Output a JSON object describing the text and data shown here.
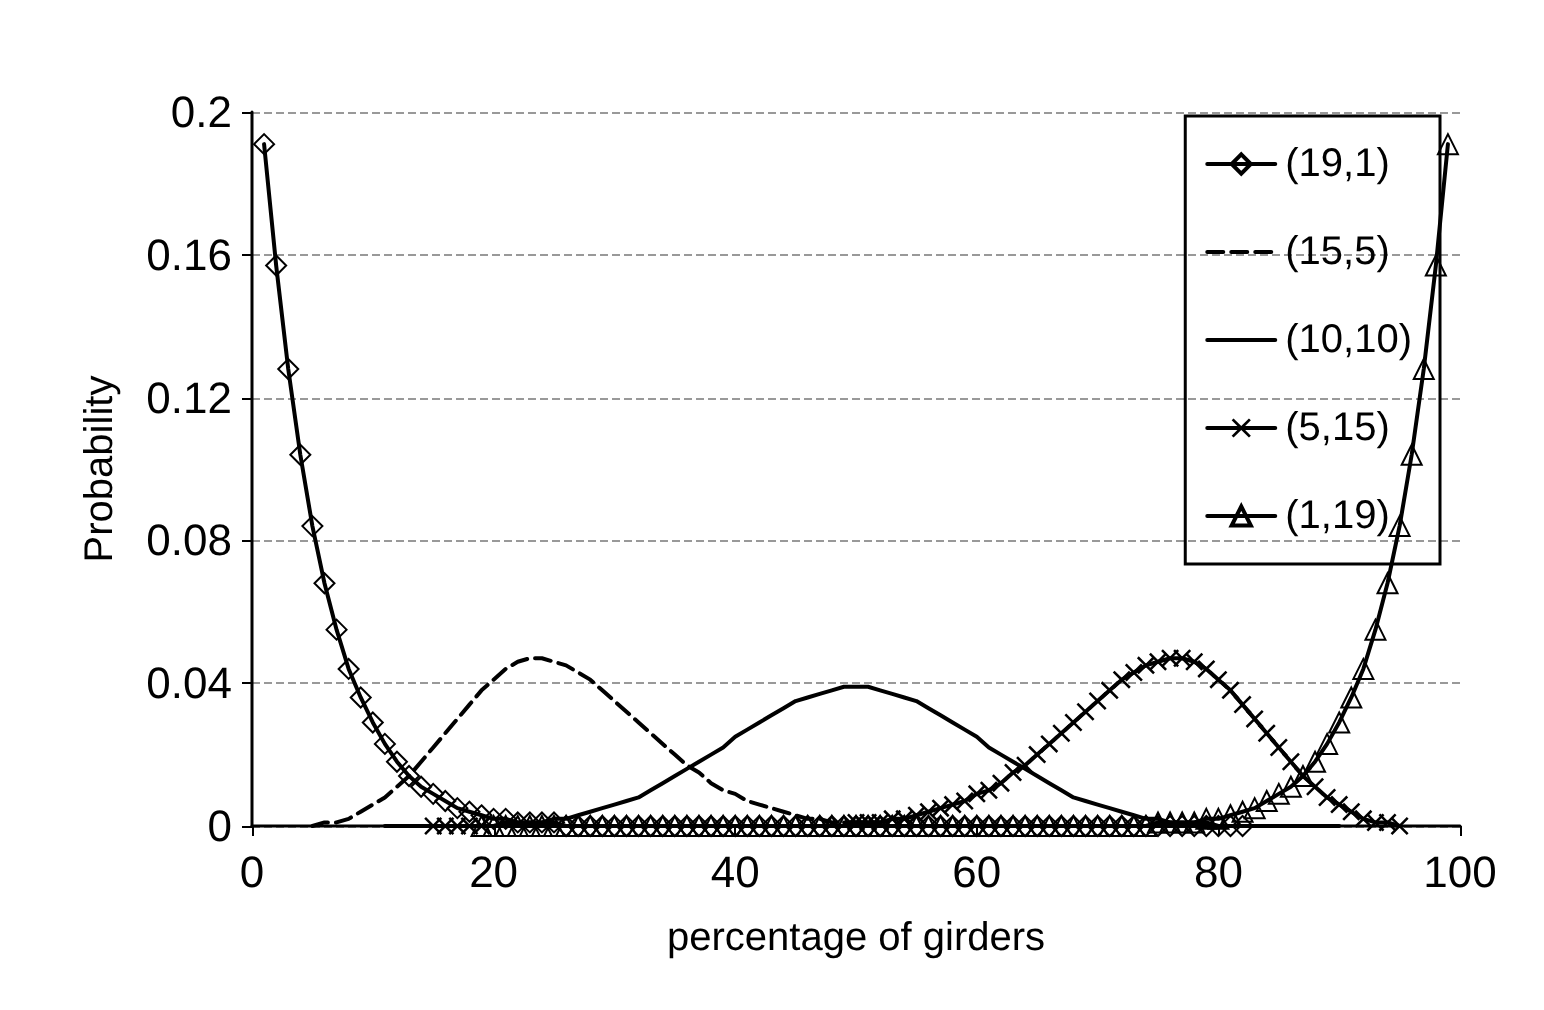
{
  "chart_data": {
    "type": "line",
    "xlabel": "percentage of girders",
    "ylabel": "Probability",
    "xlim": [
      0,
      100
    ],
    "xticks": [
      0,
      20,
      40,
      60,
      80,
      100
    ],
    "ylim": [
      0,
      0.2
    ],
    "yticks": [
      0,
      0.04,
      0.08,
      0.12,
      0.16,
      0.2
    ],
    "grid": "y",
    "legend": "top right",
    "series": [
      {
        "name": "(19,1)",
        "color": "#000000",
        "marker": "diamond",
        "line_style": "solid",
        "x": [
          1,
          2,
          3,
          4,
          5,
          6,
          7,
          8,
          9,
          10,
          11,
          12,
          13,
          14,
          15,
          16,
          17,
          18,
          19,
          20,
          21,
          22,
          23,
          24,
          25,
          26,
          27,
          28,
          29,
          30,
          31,
          32,
          33,
          34,
          35,
          36,
          37,
          38,
          39,
          40,
          41,
          42,
          43,
          44,
          45,
          46,
          47,
          48,
          49,
          50,
          51,
          52,
          53,
          54,
          55,
          56,
          57,
          58,
          59,
          60,
          61,
          62,
          63,
          64,
          65,
          66,
          67,
          68,
          69,
          70,
          71,
          72,
          73,
          74,
          75,
          76,
          77,
          78,
          79,
          80,
          81,
          82
        ],
        "values": [
          0.191,
          0.157,
          0.128,
          0.104,
          0.084,
          0.068,
          0.055,
          0.044,
          0.036,
          0.029,
          0.023,
          0.018,
          0.014,
          0.011,
          0.009,
          0.007,
          0.005,
          0.004,
          0.003,
          0.002,
          0.002,
          0.001,
          0.001,
          0.001,
          0.001,
          0,
          0,
          0,
          0,
          0,
          0,
          0,
          0,
          0,
          0,
          0,
          0,
          0,
          0,
          0,
          0,
          0,
          0,
          0,
          0,
          0,
          0,
          0,
          0,
          0,
          0,
          0,
          0,
          0,
          0,
          0,
          0,
          0,
          0,
          0,
          0,
          0,
          0,
          0,
          0,
          0,
          0,
          0,
          0,
          0,
          0,
          0,
          0,
          0,
          0,
          0,
          0,
          0,
          0,
          0,
          0,
          0
        ]
      },
      {
        "name": "(15,5)",
        "color": "#000000",
        "marker": "none",
        "line_style": "dashed",
        "x": [
          5,
          6,
          7,
          8,
          9,
          10,
          11,
          12,
          13,
          14,
          15,
          16,
          17,
          18,
          19,
          20,
          21,
          22,
          23,
          24,
          25,
          26,
          27,
          28,
          29,
          30,
          31,
          32,
          33,
          34,
          35,
          36,
          37,
          38,
          39,
          40,
          41,
          42,
          43,
          44,
          45,
          46,
          47,
          48,
          49,
          50,
          51,
          52,
          53,
          54,
          55,
          56,
          57,
          58
        ],
        "values": [
          0,
          0.001,
          0.001,
          0.002,
          0.004,
          0.006,
          0.008,
          0.011,
          0.014,
          0.018,
          0.022,
          0.026,
          0.03,
          0.034,
          0.038,
          0.041,
          0.044,
          0.046,
          0.047,
          0.047,
          0.046,
          0.045,
          0.043,
          0.041,
          0.038,
          0.035,
          0.032,
          0.029,
          0.026,
          0.023,
          0.02,
          0.017,
          0.015,
          0.012,
          0.01,
          0.009,
          0.007,
          0.006,
          0.005,
          0.004,
          0.003,
          0.002,
          0.002,
          0.001,
          0.001,
          0.001,
          0,
          0,
          0,
          0,
          0,
          0,
          0,
          0
        ]
      },
      {
        "name": "(10,10)",
        "color": "#000000",
        "marker": "none",
        "line_style": "solid",
        "x": [
          11,
          12,
          13,
          14,
          15,
          16,
          17,
          18,
          19,
          20,
          21,
          22,
          23,
          24,
          25,
          26,
          27,
          28,
          29,
          30,
          31,
          32,
          33,
          34,
          35,
          36,
          37,
          38,
          39,
          40,
          41,
          42,
          43,
          44,
          45,
          46,
          47,
          48,
          49,
          50,
          51,
          52,
          53,
          54,
          55,
          56,
          57,
          58,
          59,
          60,
          61,
          62,
          63,
          64,
          65,
          66,
          67,
          68,
          69,
          70,
          71,
          72,
          73,
          74,
          75,
          76,
          77,
          78,
          79,
          80,
          81,
          82,
          83,
          84,
          85,
          86,
          87,
          88,
          89,
          90
        ],
        "values": [
          0,
          0,
          0,
          0,
          0,
          0,
          0,
          0,
          0,
          0,
          0.001,
          0.001,
          0.001,
          0.001,
          0.002,
          0.002,
          0.003,
          0.004,
          0.005,
          0.006,
          0.007,
          0.008,
          0.01,
          0.012,
          0.014,
          0.016,
          0.018,
          0.02,
          0.022,
          0.025,
          0.027,
          0.029,
          0.031,
          0.033,
          0.035,
          0.036,
          0.037,
          0.038,
          0.039,
          0.039,
          0.039,
          0.038,
          0.037,
          0.036,
          0.035,
          0.033,
          0.031,
          0.029,
          0.027,
          0.025,
          0.022,
          0.02,
          0.018,
          0.016,
          0.014,
          0.012,
          0.01,
          0.008,
          0.007,
          0.006,
          0.005,
          0.004,
          0.003,
          0.002,
          0.002,
          0.001,
          0.001,
          0.001,
          0.001,
          0,
          0,
          0,
          0,
          0,
          0,
          0,
          0,
          0,
          0,
          0
        ]
      },
      {
        "name": "(5,15)",
        "color": "#000000",
        "marker": "cross",
        "line_style": "solid",
        "x": [
          15,
          16,
          17,
          18,
          19,
          20,
          21,
          22,
          23,
          24,
          25,
          26,
          27,
          28,
          29,
          30,
          31,
          32,
          33,
          34,
          35,
          36,
          37,
          38,
          39,
          40,
          41,
          42,
          43,
          44,
          45,
          46,
          47,
          48,
          49,
          50,
          51,
          52,
          53,
          54,
          55,
          56,
          57,
          58,
          59,
          60,
          61,
          62,
          63,
          64,
          65,
          66,
          67,
          68,
          69,
          70,
          71,
          72,
          73,
          74,
          75,
          76,
          77,
          78,
          79,
          80,
          81,
          82,
          83,
          84,
          85,
          86,
          87,
          88,
          89,
          90,
          91,
          92,
          93,
          94,
          95
        ],
        "values": [
          0,
          0,
          0,
          0,
          0,
          null,
          null,
          null,
          null,
          null,
          null,
          null,
          null,
          null,
          null,
          null,
          null,
          null,
          null,
          null,
          null,
          null,
          null,
          null,
          null,
          null,
          null,
          null,
          null,
          null,
          null,
          null,
          null,
          null,
          null,
          0.001,
          0.001,
          0.001,
          0.002,
          0.002,
          0.003,
          0.004,
          0.005,
          0.006,
          0.007,
          0.009,
          0.01,
          0.012,
          0.015,
          0.017,
          0.02,
          0.023,
          0.026,
          0.029,
          0.032,
          0.035,
          0.038,
          0.041,
          0.043,
          0.045,
          0.046,
          0.047,
          0.047,
          0.046,
          0.044,
          0.041,
          0.038,
          0.034,
          0.03,
          0.026,
          0.022,
          0.018,
          0.014,
          0.011,
          0.008,
          0.006,
          0.004,
          0.002,
          0.001,
          0.001,
          0
        ]
      },
      {
        "name": "(1,19)",
        "color": "#000000",
        "marker": "triangle",
        "line_style": "solid",
        "x": [
          19,
          20,
          21,
          22,
          23,
          24,
          25,
          26,
          27,
          28,
          29,
          30,
          31,
          32,
          33,
          34,
          35,
          36,
          37,
          38,
          39,
          40,
          41,
          42,
          43,
          44,
          45,
          46,
          47,
          48,
          49,
          50,
          51,
          52,
          53,
          54,
          55,
          56,
          57,
          58,
          59,
          60,
          61,
          62,
          63,
          64,
          65,
          66,
          67,
          68,
          69,
          70,
          71,
          72,
          73,
          74,
          75,
          76,
          77,
          78,
          79,
          80,
          81,
          82,
          83,
          84,
          85,
          86,
          87,
          88,
          89,
          90,
          91,
          92,
          93,
          94,
          95,
          96,
          97,
          98,
          99
        ],
        "values": [
          0,
          0,
          0,
          0,
          0,
          0,
          0,
          0,
          0,
          0,
          0,
          0,
          0,
          0,
          0,
          0,
          0,
          0,
          0,
          0,
          0,
          0,
          0,
          0,
          0,
          0,
          0,
          0,
          0,
          0,
          0,
          0,
          0,
          0,
          0,
          0,
          0,
          0,
          0,
          0,
          0,
          0,
          0,
          0,
          0,
          0,
          0,
          0,
          0,
          0,
          0,
          0,
          0,
          0,
          0,
          0,
          0.001,
          0.001,
          0.001,
          0.001,
          0.002,
          0.002,
          0.003,
          0.004,
          0.005,
          0.007,
          0.009,
          0.011,
          0.014,
          0.018,
          0.023,
          0.029,
          0.036,
          0.044,
          0.055,
          0.068,
          0.084,
          0.104,
          0.128,
          0.157,
          0.191
        ]
      }
    ]
  }
}
